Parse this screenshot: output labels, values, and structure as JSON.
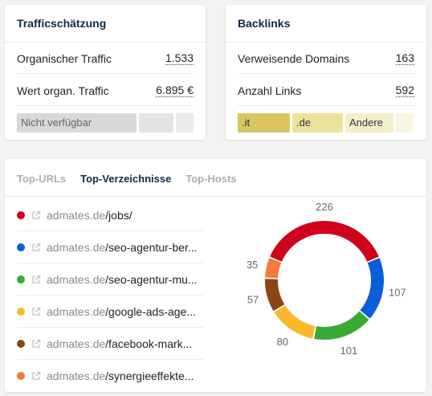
{
  "traffic": {
    "title": "Trafficschätzung",
    "rows": [
      {
        "label": "Organischer Traffic",
        "value": "1.533"
      },
      {
        "label": "Wert organ. Traffic",
        "value": "6.895 €"
      }
    ],
    "status_label": "Nicht verfügbar"
  },
  "backlinks": {
    "title": "Backlinks",
    "rows": [
      {
        "label": "Verweisende Domains",
        "value": "163"
      },
      {
        "label": "Anzahl Links",
        "value": "592"
      }
    ],
    "tld_bars": [
      {
        "label": ".it",
        "color": "#d9c65e"
      },
      {
        "label": ".de",
        "color": "#ece29b"
      },
      {
        "label": "Andere",
        "color": "#f4efcb"
      },
      {
        "label": "",
        "color": "#f8f5e1"
      }
    ]
  },
  "top": {
    "tabs": [
      {
        "label": "Top-URLs",
        "active": false
      },
      {
        "label": "Top-Verzeichnisse",
        "active": true
      },
      {
        "label": "Top-Hosts",
        "active": false
      }
    ],
    "items": [
      {
        "domain": "admates.de",
        "path": "/jobs/",
        "color": "#d0021b"
      },
      {
        "domain": "admates.de",
        "path": "/seo-agentur-ber...",
        "color": "#0b5ed7"
      },
      {
        "domain": "admates.de",
        "path": "/seo-agentur-mu...",
        "color": "#3aaa35"
      },
      {
        "domain": "admates.de",
        "path": "/google-ads-age...",
        "color": "#fbb829"
      },
      {
        "domain": "admates.de",
        "path": "/facebook-mark...",
        "color": "#8b4513"
      },
      {
        "domain": "admates.de",
        "path": "/synergieeffekte...",
        "color": "#f5793a"
      }
    ]
  },
  "chart_data": {
    "type": "pie",
    "categories": [
      "/jobs/",
      "/seo-agentur-ber...",
      "/seo-agentur-mu...",
      "/google-ads-age...",
      "/facebook-mark...",
      "/synergieeffekte..."
    ],
    "values": [
      226,
      107,
      101,
      80,
      57,
      35
    ],
    "colors": [
      "#d0021b",
      "#0b5ed7",
      "#3aaa35",
      "#fbb829",
      "#8b4513",
      "#f5793a"
    ],
    "data_labels": [
      "226",
      "107",
      "101",
      "80",
      "57",
      "35"
    ]
  }
}
